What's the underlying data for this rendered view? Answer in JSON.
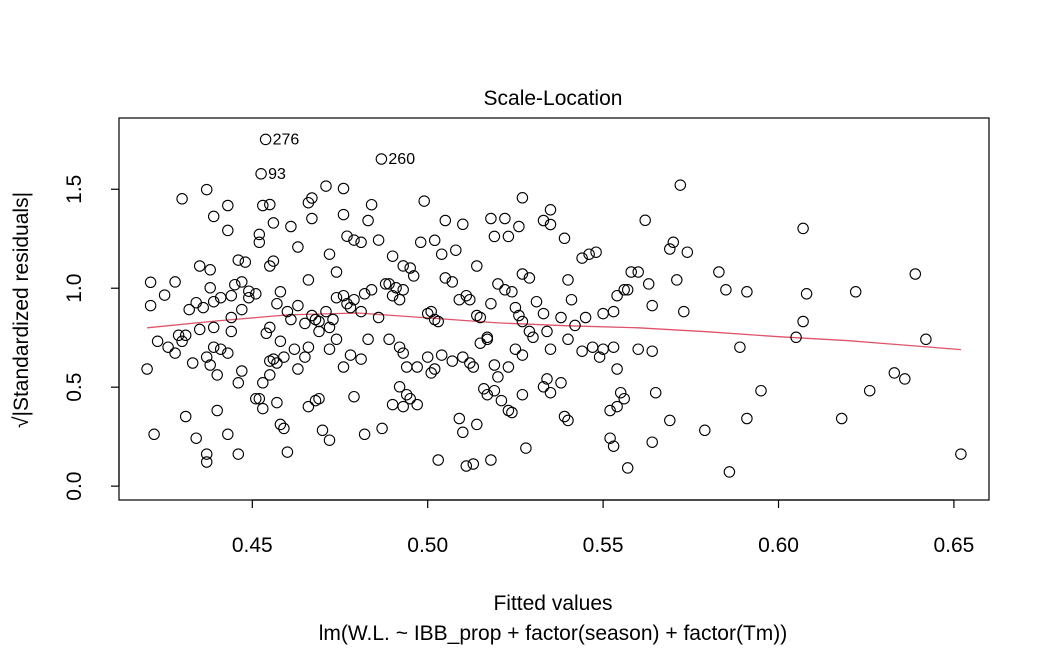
{
  "chart_data": {
    "type": "scatter",
    "title": "Scale-Location",
    "xlabel": "Fitted values",
    "ylabel": "√|Standardized residuals|",
    "subtitle": "lm(W.L. ~ IBB_prop + factor(season) + factor(Tm))",
    "xlim": [
      0.412,
      0.66
    ],
    "ylim": [
      -0.07,
      1.86
    ],
    "xticks": [
      0.45,
      0.5,
      0.55,
      0.6,
      0.65
    ],
    "xtick_labels": [
      "0.45",
      "0.50",
      "0.55",
      "0.60",
      "0.65"
    ],
    "yticks": [
      0.0,
      0.5,
      1.0,
      1.5
    ],
    "ytick_labels": [
      "0.0",
      "0.5",
      "1.0",
      "1.5"
    ],
    "grid": false,
    "colors": {
      "points": "#000000",
      "smoother": "#DF536B"
    },
    "annotations": [
      {
        "text": "276",
        "x": 0.4538,
        "y": 1.752
      },
      {
        "text": "93",
        "x": 0.4525,
        "y": 1.578
      },
      {
        "text": "260",
        "x": 0.4868,
        "y": 1.653
      }
    ],
    "smoother": {
      "x": [
        0.42,
        0.44,
        0.46,
        0.48,
        0.5,
        0.52,
        0.54,
        0.56,
        0.58,
        0.6,
        0.62,
        0.652
      ],
      "y": [
        0.8,
        0.835,
        0.865,
        0.875,
        0.85,
        0.825,
        0.81,
        0.8,
        0.78,
        0.755,
        0.735,
        0.69
      ]
    },
    "points": [
      [
        0.4538,
        1.752
      ],
      [
        0.4525,
        1.578
      ],
      [
        0.4868,
        1.653
      ],
      [
        0.43,
        1.452
      ],
      [
        0.437,
        1.498
      ],
      [
        0.443,
        1.418
      ],
      [
        0.453,
        1.418
      ],
      [
        0.455,
        1.423
      ],
      [
        0.467,
        1.456
      ],
      [
        0.471,
        1.516
      ],
      [
        0.476,
        1.504
      ],
      [
        0.484,
        1.422
      ],
      [
        0.499,
        1.44
      ],
      [
        0.527,
        1.457
      ],
      [
        0.535,
        1.396
      ],
      [
        0.562,
        1.343
      ],
      [
        0.572,
        1.521
      ],
      [
        0.421,
        1.03
      ],
      [
        0.428,
        1.032
      ],
      [
        0.421,
        0.912
      ],
      [
        0.425,
        0.965
      ],
      [
        0.435,
        1.112
      ],
      [
        0.438,
        1.093
      ],
      [
        0.439,
        1.363
      ],
      [
        0.443,
        1.292
      ],
      [
        0.445,
        1.018
      ],
      [
        0.446,
        1.142
      ],
      [
        0.448,
        1.132
      ],
      [
        0.449,
        0.985
      ],
      [
        0.447,
        0.892
      ],
      [
        0.452,
        1.232
      ],
      [
        0.452,
        1.272
      ],
      [
        0.455,
        1.112
      ],
      [
        0.456,
        1.137
      ],
      [
        0.456,
        1.33
      ],
      [
        0.461,
        1.312
      ],
      [
        0.463,
        1.208
      ],
      [
        0.466,
        1.432
      ],
      [
        0.467,
        1.352
      ],
      [
        0.472,
        1.172
      ],
      [
        0.474,
        1.082
      ],
      [
        0.476,
        1.372
      ],
      [
        0.477,
        1.263
      ],
      [
        0.479,
        1.243
      ],
      [
        0.481,
        1.232
      ],
      [
        0.483,
        1.342
      ],
      [
        0.486,
        1.243
      ],
      [
        0.49,
        1.162
      ],
      [
        0.493,
        1.113
      ],
      [
        0.495,
        1.102
      ],
      [
        0.498,
        1.232
      ],
      [
        0.502,
        1.242
      ],
      [
        0.504,
        1.172
      ],
      [
        0.505,
        1.342
      ],
      [
        0.508,
        1.192
      ],
      [
        0.51,
        1.323
      ],
      [
        0.514,
        1.112
      ],
      [
        0.518,
        1.352
      ],
      [
        0.519,
        1.262
      ],
      [
        0.522,
        1.352
      ],
      [
        0.523,
        1.262
      ],
      [
        0.526,
        1.312
      ],
      [
        0.529,
        1.052
      ],
      [
        0.533,
        1.342
      ],
      [
        0.535,
        1.322
      ],
      [
        0.539,
        1.252
      ],
      [
        0.544,
        1.152
      ],
      [
        0.546,
        1.172
      ],
      [
        0.548,
        1.182
      ],
      [
        0.558,
        1.082
      ],
      [
        0.56,
        1.082
      ],
      [
        0.569,
        1.198
      ],
      [
        0.57,
        1.232
      ],
      [
        0.574,
        1.182
      ],
      [
        0.607,
        1.302
      ],
      [
        0.432,
        0.892
      ],
      [
        0.434,
        0.927
      ],
      [
        0.436,
        0.902
      ],
      [
        0.438,
        1.002
      ],
      [
        0.439,
        0.932
      ],
      [
        0.441,
        0.952
      ],
      [
        0.444,
        0.962
      ],
      [
        0.444,
        0.852
      ],
      [
        0.447,
        1.032
      ],
      [
        0.449,
        0.952
      ],
      [
        0.451,
        0.972
      ],
      [
        0.455,
        0.802
      ],
      [
        0.457,
        0.922
      ],
      [
        0.458,
        0.982
      ],
      [
        0.46,
        0.882
      ],
      [
        0.461,
        0.842
      ],
      [
        0.463,
        0.912
      ],
      [
        0.465,
        0.822
      ],
      [
        0.466,
        1.042
      ],
      [
        0.467,
        0.862
      ],
      [
        0.468,
        0.842
      ],
      [
        0.469,
        0.832
      ],
      [
        0.471,
        0.882
      ],
      [
        0.472,
        0.802
      ],
      [
        0.473,
        0.842
      ],
      [
        0.474,
        0.952
      ],
      [
        0.476,
        0.962
      ],
      [
        0.477,
        0.922
      ],
      [
        0.478,
        0.902
      ],
      [
        0.479,
        0.942
      ],
      [
        0.481,
        0.882
      ],
      [
        0.482,
        0.972
      ],
      [
        0.484,
        0.992
      ],
      [
        0.486,
        0.852
      ],
      [
        0.488,
        1.022
      ],
      [
        0.489,
        1.022
      ],
      [
        0.49,
        0.962
      ],
      [
        0.491,
        1.002
      ],
      [
        0.492,
        0.942
      ],
      [
        0.493,
        0.992
      ],
      [
        0.496,
        1.062
      ],
      [
        0.5,
        0.872
      ],
      [
        0.501,
        0.882
      ],
      [
        0.502,
        0.842
      ],
      [
        0.503,
        0.832
      ],
      [
        0.505,
        1.052
      ],
      [
        0.507,
        1.032
      ],
      [
        0.509,
        0.942
      ],
      [
        0.511,
        0.962
      ],
      [
        0.512,
        0.942
      ],
      [
        0.514,
        0.862
      ],
      [
        0.515,
        0.852
      ],
      [
        0.517,
        0.752
      ],
      [
        0.518,
        0.922
      ],
      [
        0.52,
        1.022
      ],
      [
        0.522,
        0.992
      ],
      [
        0.524,
        0.982
      ],
      [
        0.525,
        0.902
      ],
      [
        0.526,
        0.862
      ],
      [
        0.527,
        0.832
      ],
      [
        0.527,
        1.072
      ],
      [
        0.529,
        0.782
      ],
      [
        0.531,
        0.932
      ],
      [
        0.533,
        0.872
      ],
      [
        0.534,
        0.782
      ],
      [
        0.538,
        0.852
      ],
      [
        0.54,
        1.042
      ],
      [
        0.541,
        0.942
      ],
      [
        0.542,
        0.812
      ],
      [
        0.545,
        0.852
      ],
      [
        0.55,
        0.872
      ],
      [
        0.553,
        0.882
      ],
      [
        0.554,
        0.962
      ],
      [
        0.556,
        0.992
      ],
      [
        0.557,
        0.992
      ],
      [
        0.563,
        1.022
      ],
      [
        0.564,
        0.912
      ],
      [
        0.571,
        1.042
      ],
      [
        0.573,
        0.882
      ],
      [
        0.583,
        1.082
      ],
      [
        0.585,
        0.992
      ],
      [
        0.591,
        0.982
      ],
      [
        0.608,
        0.972
      ],
      [
        0.622,
        0.982
      ],
      [
        0.639,
        1.072
      ],
      [
        0.423,
        0.732
      ],
      [
        0.426,
        0.702
      ],
      [
        0.428,
        0.672
      ],
      [
        0.429,
        0.762
      ],
      [
        0.43,
        0.732
      ],
      [
        0.431,
        0.762
      ],
      [
        0.433,
        0.622
      ],
      [
        0.435,
        0.792
      ],
      [
        0.437,
        0.652
      ],
      [
        0.438,
        0.612
      ],
      [
        0.439,
        0.702
      ],
      [
        0.439,
        0.802
      ],
      [
        0.44,
        0.562
      ],
      [
        0.441,
        0.692
      ],
      [
        0.443,
        0.672
      ],
      [
        0.444,
        0.782
      ],
      [
        0.446,
        0.522
      ],
      [
        0.447,
        0.582
      ],
      [
        0.451,
        0.442
      ],
      [
        0.453,
        0.522
      ],
      [
        0.454,
        0.772
      ],
      [
        0.455,
        0.562
      ],
      [
        0.456,
        0.642
      ],
      [
        0.457,
        0.622
      ],
      [
        0.458,
        0.732
      ],
      [
        0.459,
        0.652
      ],
      [
        0.462,
        0.692
      ],
      [
        0.463,
        0.592
      ],
      [
        0.465,
        0.652
      ],
      [
        0.466,
        0.702
      ],
      [
        0.469,
        0.782
      ],
      [
        0.472,
        0.692
      ],
      [
        0.474,
        0.742
      ],
      [
        0.476,
        0.602
      ],
      [
        0.478,
        0.662
      ],
      [
        0.481,
        0.642
      ],
      [
        0.483,
        0.742
      ],
      [
        0.489,
        0.742
      ],
      [
        0.492,
        0.702
      ],
      [
        0.493,
        0.672
      ],
      [
        0.494,
        0.602
      ],
      [
        0.497,
        0.602
      ],
      [
        0.5,
        0.652
      ],
      [
        0.501,
        0.572
      ],
      [
        0.502,
        0.592
      ],
      [
        0.504,
        0.662
      ],
      [
        0.507,
        0.632
      ],
      [
        0.51,
        0.652
      ],
      [
        0.512,
        0.622
      ],
      [
        0.513,
        0.602
      ],
      [
        0.515,
        0.722
      ],
      [
        0.517,
        0.742
      ],
      [
        0.519,
        0.612
      ],
      [
        0.52,
        0.552
      ],
      [
        0.523,
        0.602
      ],
      [
        0.525,
        0.692
      ],
      [
        0.527,
        0.662
      ],
      [
        0.53,
        0.752
      ],
      [
        0.534,
        0.542
      ],
      [
        0.535,
        0.692
      ],
      [
        0.538,
        0.522
      ],
      [
        0.54,
        0.742
      ],
      [
        0.544,
        0.682
      ],
      [
        0.547,
        0.702
      ],
      [
        0.549,
        0.652
      ],
      [
        0.55,
        0.692
      ],
      [
        0.553,
        0.702
      ],
      [
        0.554,
        0.592
      ],
      [
        0.56,
        0.692
      ],
      [
        0.564,
        0.682
      ],
      [
        0.589,
        0.702
      ],
      [
        0.605,
        0.752
      ],
      [
        0.607,
        0.832
      ],
      [
        0.642,
        0.742
      ],
      [
        0.42,
        0.592
      ],
      [
        0.431,
        0.352
      ],
      [
        0.434,
        0.242
      ],
      [
        0.437,
        0.162
      ],
      [
        0.44,
        0.382
      ],
      [
        0.443,
        0.262
      ],
      [
        0.446,
        0.162
      ],
      [
        0.452,
        0.442
      ],
      [
        0.453,
        0.392
      ],
      [
        0.457,
        0.422
      ],
      [
        0.458,
        0.312
      ],
      [
        0.459,
        0.292
      ],
      [
        0.46,
        0.172
      ],
      [
        0.466,
        0.402
      ],
      [
        0.468,
        0.432
      ],
      [
        0.469,
        0.442
      ],
      [
        0.47,
        0.282
      ],
      [
        0.472,
        0.232
      ],
      [
        0.479,
        0.452
      ],
      [
        0.482,
        0.262
      ],
      [
        0.487,
        0.292
      ],
      [
        0.49,
        0.412
      ],
      [
        0.492,
        0.502
      ],
      [
        0.493,
        0.402
      ],
      [
        0.494,
        0.462
      ],
      [
        0.495,
        0.442
      ],
      [
        0.497,
        0.412
      ],
      [
        0.503,
        0.132
      ],
      [
        0.509,
        0.342
      ],
      [
        0.51,
        0.272
      ],
      [
        0.511,
        0.102
      ],
      [
        0.513,
        0.112
      ],
      [
        0.514,
        0.312
      ],
      [
        0.516,
        0.492
      ],
      [
        0.517,
        0.462
      ],
      [
        0.518,
        0.132
      ],
      [
        0.519,
        0.482
      ],
      [
        0.521,
        0.432
      ],
      [
        0.523,
        0.382
      ],
      [
        0.524,
        0.372
      ],
      [
        0.527,
        0.462
      ],
      [
        0.528,
        0.192
      ],
      [
        0.533,
        0.502
      ],
      [
        0.535,
        0.472
      ],
      [
        0.539,
        0.352
      ],
      [
        0.54,
        0.332
      ],
      [
        0.552,
        0.382
      ],
      [
        0.552,
        0.242
      ],
      [
        0.553,
        0.202
      ],
      [
        0.554,
        0.402
      ],
      [
        0.555,
        0.472
      ],
      [
        0.556,
        0.442
      ],
      [
        0.557,
        0.092
      ],
      [
        0.564,
        0.222
      ],
      [
        0.565,
        0.472
      ],
      [
        0.569,
        0.332
      ],
      [
        0.579,
        0.282
      ],
      [
        0.586,
        0.072
      ],
      [
        0.591,
        0.342
      ],
      [
        0.595,
        0.482
      ],
      [
        0.618,
        0.342
      ],
      [
        0.626,
        0.482
      ],
      [
        0.633,
        0.572
      ],
      [
        0.636,
        0.542
      ],
      [
        0.652,
        0.162
      ],
      [
        0.422,
        0.262
      ],
      [
        0.437,
        0.122
      ],
      [
        0.455,
        0.632
      ]
    ]
  }
}
